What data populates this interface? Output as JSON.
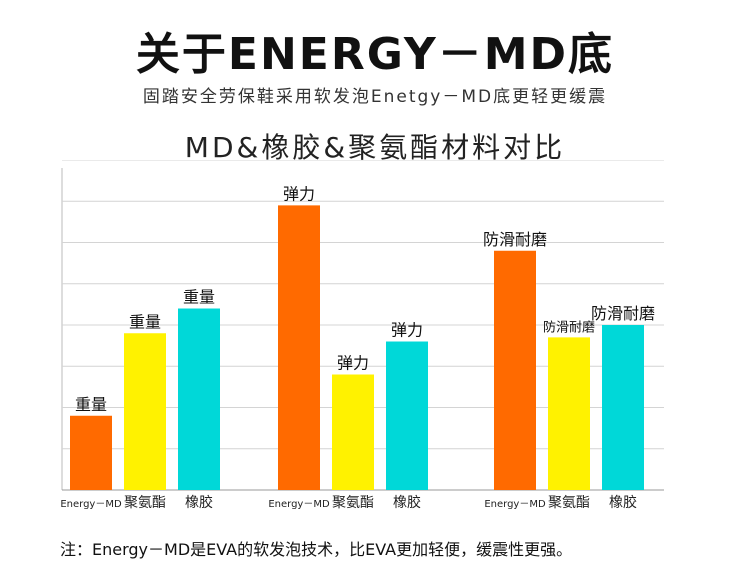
{
  "header": {
    "title": "关于ENERGY－MD底",
    "subtitle": "固踏安全劳保鞋采用软发泡Enetgy－MD底更轻更缓震"
  },
  "chart_data": {
    "type": "bar",
    "title": "MD&橡胶&聚氨酯材料对比",
    "ylim": [
      0,
      8
    ],
    "grid": true,
    "groups": [
      {
        "bars": [
          {
            "category": "Energy－MD",
            "label": "重量",
            "value": 1.8,
            "color": "#ff6a00"
          },
          {
            "category": "聚氨酯",
            "label": "重量",
            "value": 3.8,
            "color": "#fff200"
          },
          {
            "category": "橡胶",
            "label": "重量",
            "value": 4.4,
            "color": "#00d8d8"
          }
        ]
      },
      {
        "bars": [
          {
            "category": "Energy－MD",
            "label": "弹力",
            "value": 6.9,
            "color": "#ff6a00"
          },
          {
            "category": "聚氨酯",
            "label": "弹力",
            "value": 2.8,
            "color": "#fff200"
          },
          {
            "category": "橡胶",
            "label": "弹力",
            "value": 3.6,
            "color": "#00d8d8"
          }
        ]
      },
      {
        "bars": [
          {
            "category": "Energy－MD",
            "label": "防滑耐磨",
            "value": 5.8,
            "color": "#ff6a00"
          },
          {
            "category": "聚氨酯",
            "label": "防滑耐磨",
            "value": 3.7,
            "color": "#fff200"
          },
          {
            "category": "橡胶",
            "label": "防滑耐磨",
            "value": 4.0,
            "color": "#00d8d8"
          }
        ]
      }
    ]
  },
  "footer": {
    "note": "注：Energy－MD是EVA的软发泡技术，比EVA更加轻便，缓震性更强。"
  }
}
